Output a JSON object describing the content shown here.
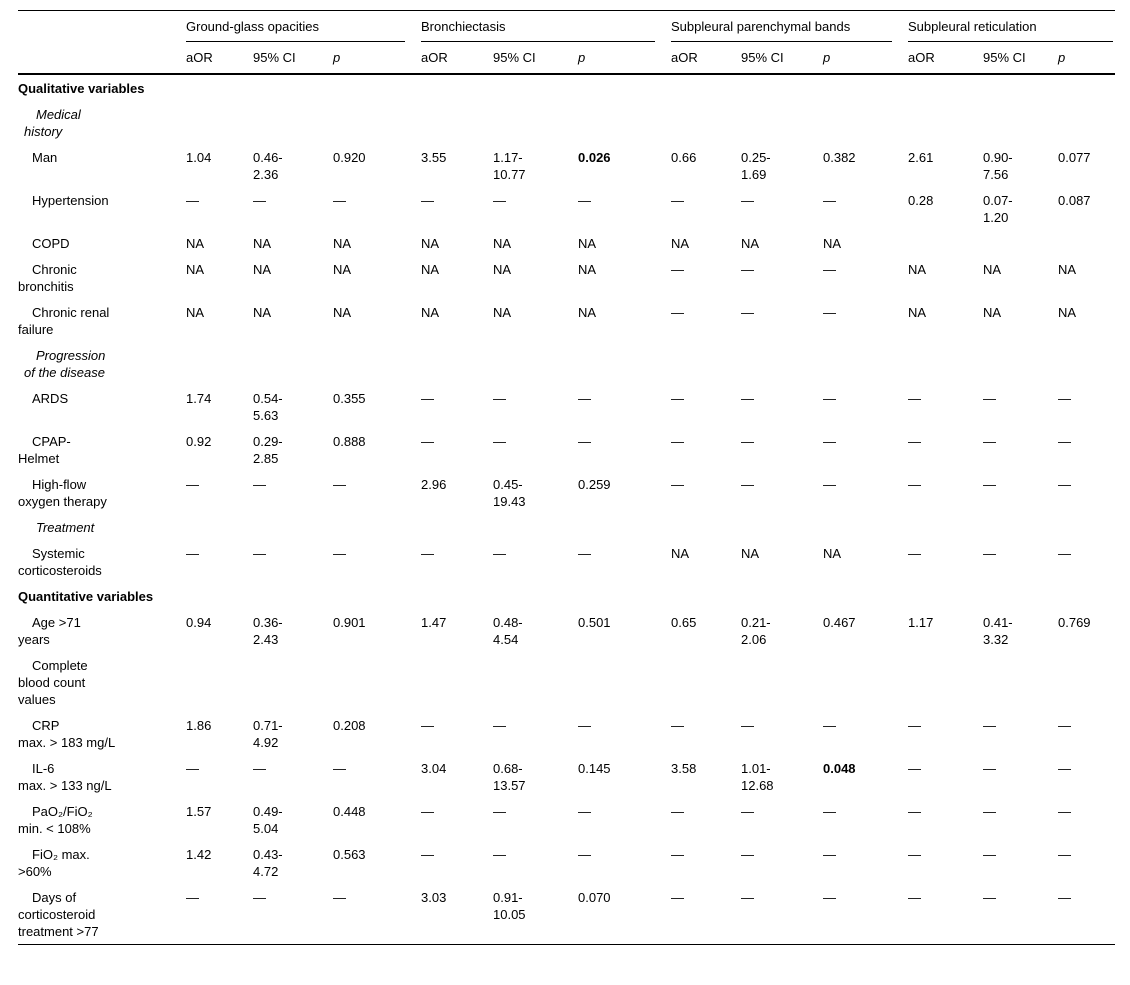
{
  "table": {
    "groups": [
      {
        "label": "Ground-glass opacities"
      },
      {
        "label": "Bronchiectasis"
      },
      {
        "label": "Subpleural parenchymal bands"
      },
      {
        "label": "Subpleural reticulation"
      }
    ],
    "sub_headers": [
      "aOR",
      "95% CI",
      "p"
    ],
    "rows": [
      {
        "type": "section",
        "label": "Qualitative variables"
      },
      {
        "type": "subsection",
        "label": "Medical\nhistory"
      },
      {
        "type": "data",
        "label": "Man",
        "cells": [
          "1.04",
          "0.46-\n2.36",
          "0.920",
          "3.55",
          "1.17-\n10.77",
          "0.026",
          "0.66",
          "0.25-\n1.69",
          "0.382",
          "2.61",
          "0.90-\n7.56",
          "0.077"
        ],
        "bold": [
          5
        ]
      },
      {
        "type": "data",
        "label": "Hypertension",
        "cells": [
          "—",
          "—",
          "—",
          "—",
          "—",
          "—",
          "—",
          "—",
          "—",
          "0.28",
          "0.07-\n1.20",
          "0.087"
        ]
      },
      {
        "type": "data",
        "label": "COPD",
        "cells": [
          "NA",
          "NA",
          "NA",
          "NA",
          "NA",
          "NA",
          "NA",
          "NA",
          "NA",
          "",
          "",
          ""
        ]
      },
      {
        "type": "data",
        "label": "Chronic\nbronchitis",
        "cells": [
          "NA",
          "NA",
          "NA",
          "NA",
          "NA",
          "NA",
          "—",
          "—",
          "—",
          "NA",
          "NA",
          "NA"
        ]
      },
      {
        "type": "data",
        "label": "Chronic renal\nfailure",
        "cells": [
          "NA",
          "NA",
          "NA",
          "NA",
          "NA",
          "NA",
          "—",
          "—",
          "—",
          "NA",
          "NA",
          "NA"
        ]
      },
      {
        "type": "subsection",
        "label": "Progression\nof the disease"
      },
      {
        "type": "data",
        "label": "ARDS",
        "cells": [
          "1.74",
          "0.54-\n5.63",
          "0.355",
          "—",
          "—",
          "—",
          "—",
          "—",
          "—",
          "—",
          "—",
          "—"
        ]
      },
      {
        "type": "data",
        "label": "CPAP-\nHelmet",
        "cells": [
          "0.92",
          "0.29-\n2.85",
          "0.888",
          "—",
          "—",
          "—",
          "—",
          "—",
          "—",
          "—",
          "—",
          "—"
        ]
      },
      {
        "type": "data",
        "label": "High-flow\noxygen therapy",
        "cells": [
          "—",
          "—",
          "—",
          "2.96",
          "0.45-\n19.43",
          "0.259",
          "—",
          "—",
          "—",
          "—",
          "—",
          "—"
        ]
      },
      {
        "type": "subsection",
        "label": "Treatment"
      },
      {
        "type": "data",
        "label": "Systemic\ncorticosteroids",
        "cells": [
          "—",
          "—",
          "—",
          "—",
          "—",
          "—",
          "NA",
          "NA",
          "NA",
          "—",
          "—",
          "—"
        ]
      },
      {
        "type": "section",
        "label": "Quantitative variables"
      },
      {
        "type": "data",
        "label": "Age >71\nyears",
        "cells": [
          "0.94",
          "0.36-\n2.43",
          "0.901",
          "1.47",
          "0.48-\n4.54",
          "0.501",
          "0.65",
          "0.21-\n2.06",
          "0.467",
          "1.17",
          "0.41-\n3.32",
          "0.769"
        ]
      },
      {
        "type": "data",
        "label": "Complete\nblood count\nvalues",
        "cells": [
          "",
          "",
          "",
          "",
          "",
          "",
          "",
          "",
          "",
          "",
          "",
          ""
        ]
      },
      {
        "type": "data",
        "label": "CRP\nmax. > 183 mg/L",
        "cells": [
          "1.86",
          "0.71-\n4.92",
          "0.208",
          "—",
          "—",
          "—",
          "—",
          "—",
          "—",
          "—",
          "—",
          "—"
        ]
      },
      {
        "type": "data",
        "label": "IL-6\nmax. > 133 ng/L",
        "cells": [
          "—",
          "—",
          "—",
          "3.04",
          "0.68-\n13.57",
          "0.145",
          "3.58",
          "1.01-\n12.68",
          "0.048",
          "—",
          "—",
          "—"
        ],
        "bold": [
          8
        ]
      },
      {
        "type": "data",
        "label": "PaO₂/FiO₂\nmin. < 108%",
        "cells": [
          "1.57",
          "0.49-\n5.04",
          "0.448",
          "—",
          "—",
          "—",
          "—",
          "—",
          "—",
          "—",
          "—",
          "—"
        ]
      },
      {
        "type": "data",
        "label": "FiO₂ max.\n>60%",
        "cells": [
          "1.42",
          "0.43-\n4.72",
          "0.563",
          "—",
          "—",
          "—",
          "—",
          "—",
          "—",
          "—",
          "—",
          "—"
        ]
      },
      {
        "type": "data",
        "label": "Days of\ncorticosteroid\ntreatment >77",
        "cells": [
          "—",
          "—",
          "—",
          "3.03",
          "0.91-\n10.05",
          "0.070",
          "—",
          "—",
          "—",
          "—",
          "—",
          "—"
        ]
      }
    ]
  }
}
